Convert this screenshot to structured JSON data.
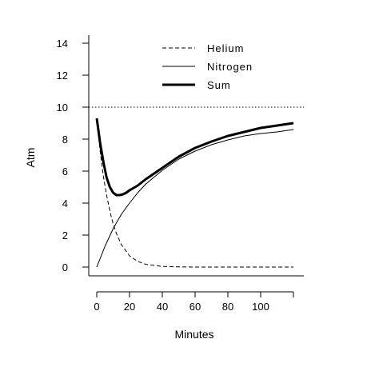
{
  "chart_data": {
    "type": "line",
    "xlabel": "Minutes",
    "ylabel": "Atm",
    "xlim": [
      0,
      120
    ],
    "ylim": [
      0,
      14
    ],
    "xticks": [
      0,
      20,
      40,
      60,
      80,
      100
    ],
    "yticks": [
      0,
      2,
      4,
      6,
      8,
      10,
      12,
      14
    ],
    "reference_line": {
      "y": 10,
      "style": "dotted"
    },
    "legend_position": "top-center",
    "grid": false,
    "series": [
      {
        "name": "Helium",
        "style": "dashed",
        "color": "#000000",
        "x": [
          0,
          2,
          4,
          6,
          8,
          10,
          12,
          15,
          20,
          25,
          30,
          40,
          50,
          60,
          80,
          100,
          120
        ],
        "y": [
          9.3,
          7.3,
          5.7,
          4.5,
          3.5,
          2.7,
          2.1,
          1.4,
          0.7,
          0.35,
          0.17,
          0.04,
          0.01,
          0.0,
          0.0,
          0.0,
          0.0
        ]
      },
      {
        "name": "Nitrogen",
        "style": "thin",
        "color": "#000000",
        "x": [
          0,
          5,
          10,
          15,
          20,
          25,
          30,
          40,
          50,
          60,
          70,
          80,
          90,
          100,
          110,
          120
        ],
        "y": [
          0.0,
          1.3,
          2.4,
          3.3,
          4.0,
          4.65,
          5.2,
          6.05,
          6.75,
          7.25,
          7.65,
          7.95,
          8.2,
          8.35,
          8.45,
          8.6
        ]
      },
      {
        "name": "Sum",
        "style": "thick",
        "color": "#000000",
        "x": [
          0,
          2,
          4,
          6,
          8,
          10,
          12,
          14,
          16,
          18,
          20,
          25,
          30,
          40,
          50,
          60,
          70,
          80,
          90,
          100,
          110,
          120
        ],
        "y": [
          9.3,
          7.8,
          6.6,
          5.6,
          5.0,
          4.65,
          4.5,
          4.5,
          4.55,
          4.65,
          4.8,
          5.1,
          5.5,
          6.2,
          6.9,
          7.45,
          7.85,
          8.2,
          8.45,
          8.7,
          8.85,
          9.0
        ]
      }
    ]
  }
}
